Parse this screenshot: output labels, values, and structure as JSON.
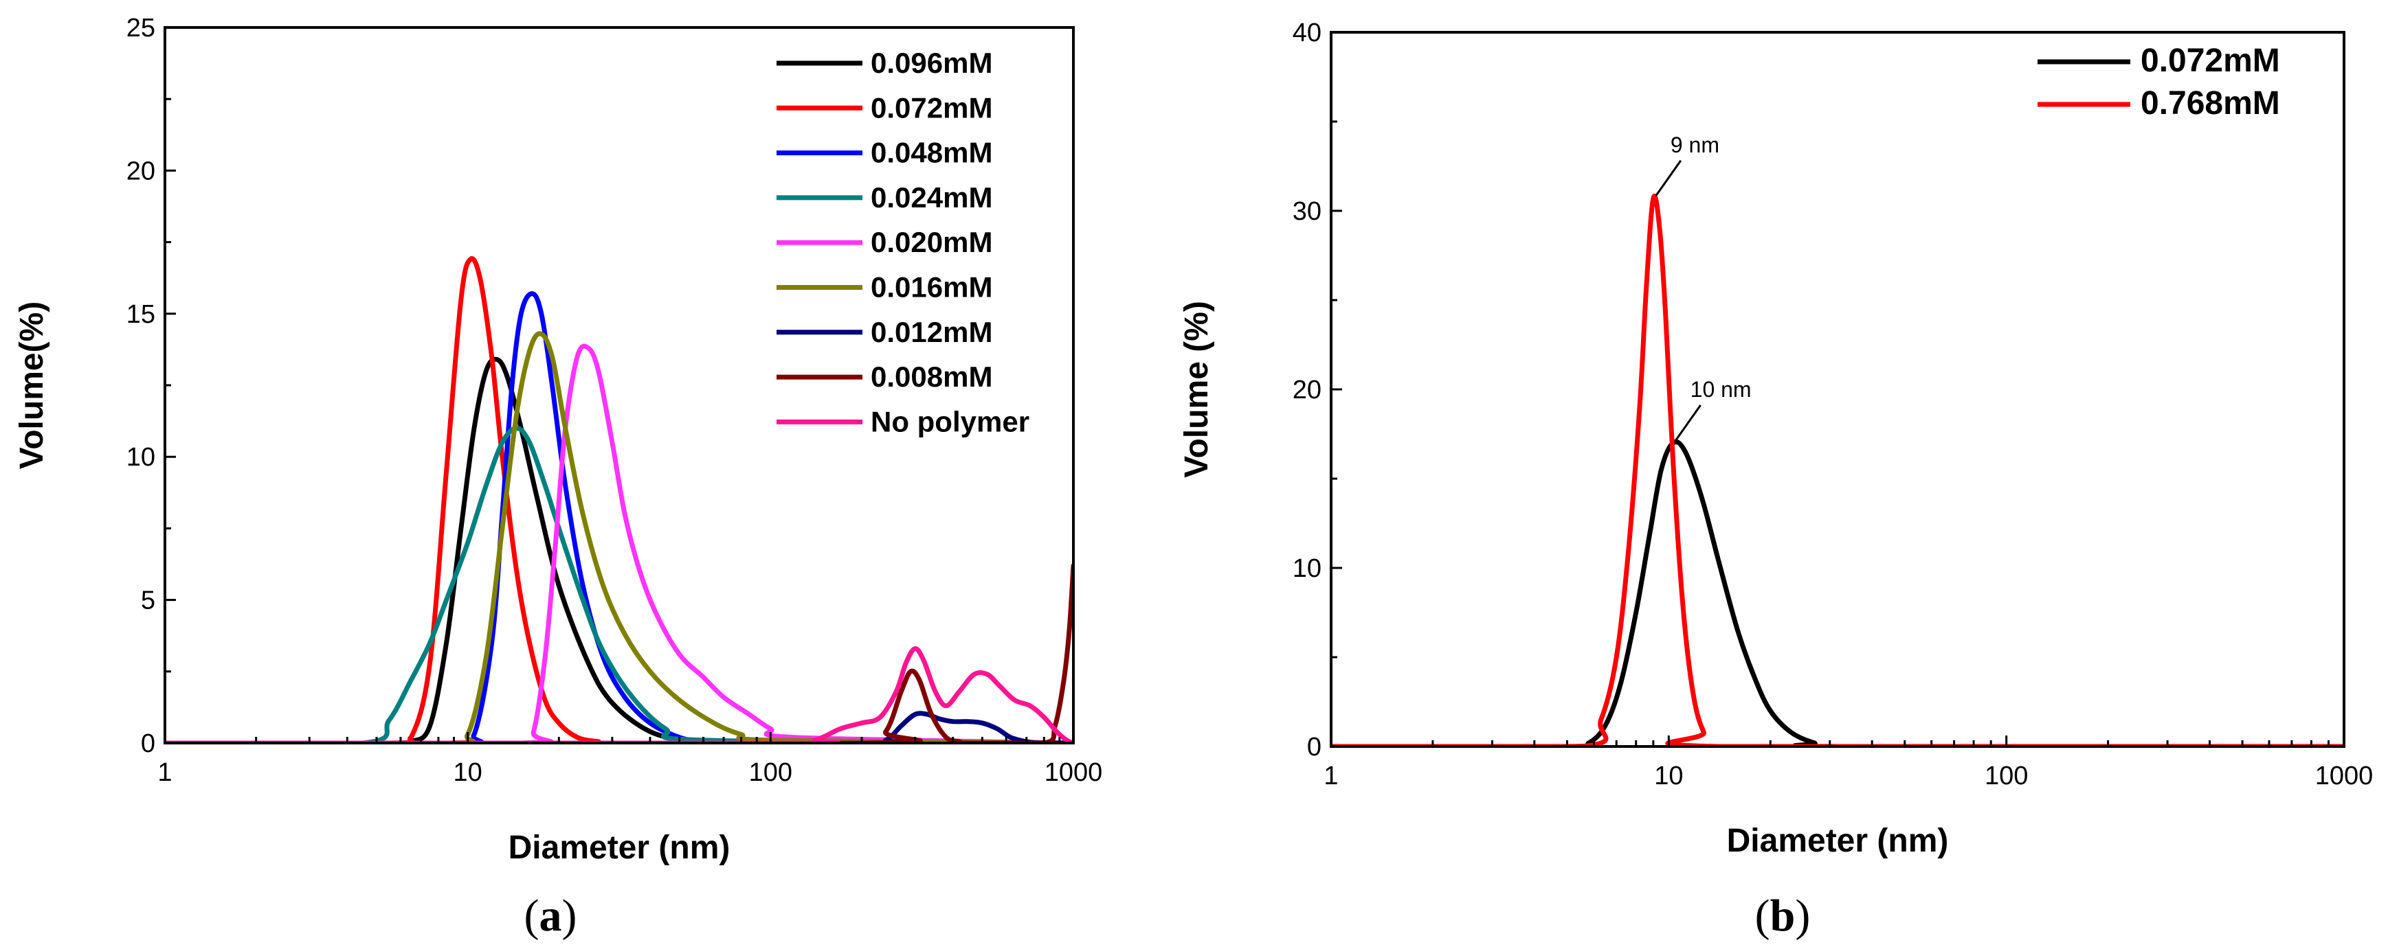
{
  "chart_data": [
    {
      "id": "a",
      "type": "line",
      "panel_label": "a",
      "xlabel": "Diameter (nm)",
      "ylabel": "Volume(%)",
      "xscale": "log",
      "xlim": [
        1,
        1000
      ],
      "ylim": [
        0,
        25
      ],
      "xticks": [
        1,
        10,
        100,
        1000
      ],
      "xtick_labels": [
        "1",
        "10",
        "100",
        "1000"
      ],
      "yticks": [
        0,
        5,
        10,
        15,
        20,
        25
      ],
      "ytick_labels": [
        "0",
        "5",
        "10",
        "15",
        "20",
        "25"
      ],
      "legend_position": "top-right",
      "series": [
        {
          "name": "0.096mM",
          "color": "#000000",
          "x": [
            1,
            5.5,
            6.5,
            7.5,
            8.5,
            9.5,
            10.5,
            11.5,
            12.5,
            13.5,
            15,
            17,
            20,
            25,
            30,
            40,
            55,
            70,
            100,
            1000
          ],
          "y": [
            0,
            0,
            0.05,
            0.6,
            3.5,
            7.5,
            11,
            13,
            13.4,
            12.8,
            11,
            8.5,
            5.5,
            2.8,
            1.4,
            0.4,
            0.05,
            0,
            0,
            0
          ]
        },
        {
          "name": "0.072mM",
          "color": "#ff0000",
          "x": [
            1,
            5.5,
            6.5,
            7.5,
            8.5,
            9.5,
            10.2,
            11,
            12,
            13,
            14.5,
            16,
            18,
            20,
            23,
            27,
            32,
            1000
          ],
          "y": [
            0,
            0,
            0.2,
            2.8,
            9.5,
            15.5,
            16.9,
            16.2,
            13.5,
            10,
            6,
            3.5,
            1.5,
            0.7,
            0.2,
            0.05,
            0,
            0
          ]
        },
        {
          "name": "0.048mM",
          "color": "#0000ff",
          "x": [
            1,
            9,
            10.5,
            12,
            13,
            14,
            15,
            16.3,
            17.5,
            19,
            21,
            24,
            28,
            33,
            40,
            50,
            60,
            80,
            1000
          ],
          "y": [
            0,
            0,
            0.3,
            3.5,
            8,
            12.5,
            15,
            15.7,
            15,
            12.5,
            9,
            5.5,
            3,
            1.6,
            0.7,
            0.2,
            0.05,
            0,
            0
          ]
        },
        {
          "name": "0.024mM",
          "color": "#008080",
          "x": [
            1,
            4.5,
            5.5,
            6.5,
            7.5,
            8.5,
            10,
            11.5,
            13,
            14.5,
            16,
            18,
            20,
            24,
            28,
            35,
            45,
            60,
            1000
          ],
          "y": [
            0,
            0,
            0.8,
            2.2,
            3.5,
            5,
            7,
            9,
            10.5,
            11,
            10.5,
            9,
            7.5,
            5,
            3.2,
            1.6,
            0.5,
            0.1,
            0
          ]
        },
        {
          "name": "0.020mM",
          "color": "#ff33ff",
          "x": [
            1,
            15,
            16.5,
            18,
            19.5,
            21,
            23,
            25,
            27,
            30,
            33,
            37,
            42,
            50,
            60,
            70,
            85,
            100,
            120,
            1000
          ],
          "y": [
            0,
            0,
            0.4,
            3,
            7,
            11,
            13.5,
            13.8,
            13,
            10.5,
            8,
            6,
            4.5,
            3.1,
            2.3,
            1.6,
            1,
            0.5,
            0.2,
            0
          ]
        },
        {
          "name": "0.016mM",
          "color": "#808000",
          "x": [
            1,
            8.5,
            10,
            11.5,
            13,
            14.5,
            16,
            17.4,
            19,
            21,
            24,
            28,
            33,
            40,
            50,
            65,
            80,
            100,
            1000
          ],
          "y": [
            0,
            0,
            0.3,
            3,
            7.5,
            11.5,
            13.7,
            14.3,
            13.5,
            11,
            8,
            5.5,
            3.8,
            2.5,
            1.5,
            0.7,
            0.3,
            0.1,
            0
          ]
        },
        {
          "name": "0.012mM",
          "color": "#000080",
          "x": [
            1,
            200,
            240,
            270,
            300,
            330,
            360,
            400,
            450,
            500,
            560,
            620,
            700,
            800,
            1000
          ],
          "y": [
            0,
            0,
            0.1,
            0.6,
            1,
            1,
            0.85,
            0.75,
            0.75,
            0.7,
            0.5,
            0.2,
            0.05,
            0,
            0
          ]
        },
        {
          "name": "0.008mM",
          "color": "#800000",
          "x": [
            1,
            200,
            240,
            270,
            290,
            310,
            340,
            380,
            420,
            450,
            800,
            870,
            930,
            970,
            1000
          ],
          "y": [
            0,
            0,
            0.4,
            1.8,
            2.5,
            2.2,
            1,
            0.2,
            0.05,
            0,
            0,
            0.6,
            2.2,
            4,
            6.2
          ]
        },
        {
          "name": "No polymer",
          "color": "#ff1493",
          "x": [
            1,
            110,
            140,
            170,
            200,
            230,
            260,
            280,
            300,
            320,
            350,
            380,
            420,
            470,
            520,
            570,
            640,
            720,
            800,
            880,
            950,
            1000
          ],
          "y": [
            0,
            0,
            0.1,
            0.5,
            0.7,
            0.9,
            1.8,
            2.8,
            3.3,
            2.9,
            1.8,
            1.3,
            1.8,
            2.4,
            2.4,
            2,
            1.5,
            1.3,
            0.9,
            0.4,
            0.1,
            0
          ]
        }
      ]
    },
    {
      "id": "b",
      "type": "line",
      "panel_label": "b",
      "xlabel": "Diameter (nm)",
      "ylabel": "Volume (%)",
      "xscale": "log",
      "xlim": [
        1,
        1000
      ],
      "ylim": [
        0,
        40
      ],
      "xticks": [
        1,
        10,
        100,
        1000
      ],
      "xtick_labels": [
        "1",
        "10",
        "100",
        "1000"
      ],
      "yticks": [
        0,
        10,
        20,
        30,
        40
      ],
      "ytick_labels": [
        "0",
        "10",
        "20",
        "30",
        "40"
      ],
      "legend_position": "top-right",
      "series": [
        {
          "name": "0.072mM",
          "color": "#000000",
          "x": [
            1,
            5,
            5.8,
            6.5,
            7.2,
            8,
            8.8,
            9.5,
            10.3,
            11.2,
            12.5,
            14,
            16,
            18,
            20,
            23,
            27,
            32,
            1000
          ],
          "y": [
            0,
            0,
            0.2,
            1.2,
            3.5,
            7.5,
            12,
            15.5,
            17,
            16.5,
            14,
            10.5,
            6.5,
            3.8,
            2,
            0.8,
            0.2,
            0,
            0
          ]
        },
        {
          "name": "0.768mM",
          "color": "#ff0000",
          "x": [
            1,
            5.5,
            6.3,
            7,
            7.6,
            8.2,
            8.6,
            9,
            9.4,
            9.8,
            10.3,
            11,
            11.8,
            12.7,
            14,
            1000
          ],
          "y": [
            0,
            0,
            1.5,
            5,
            11,
            19,
            26,
            30.7,
            29,
            24,
            16,
            8,
            3,
            0.8,
            0,
            0
          ]
        }
      ],
      "annotations": [
        {
          "text": "9 nm",
          "x": 9,
          "y": 30.7
        },
        {
          "text": "10 nm",
          "x": 10.3,
          "y": 17
        }
      ]
    }
  ]
}
